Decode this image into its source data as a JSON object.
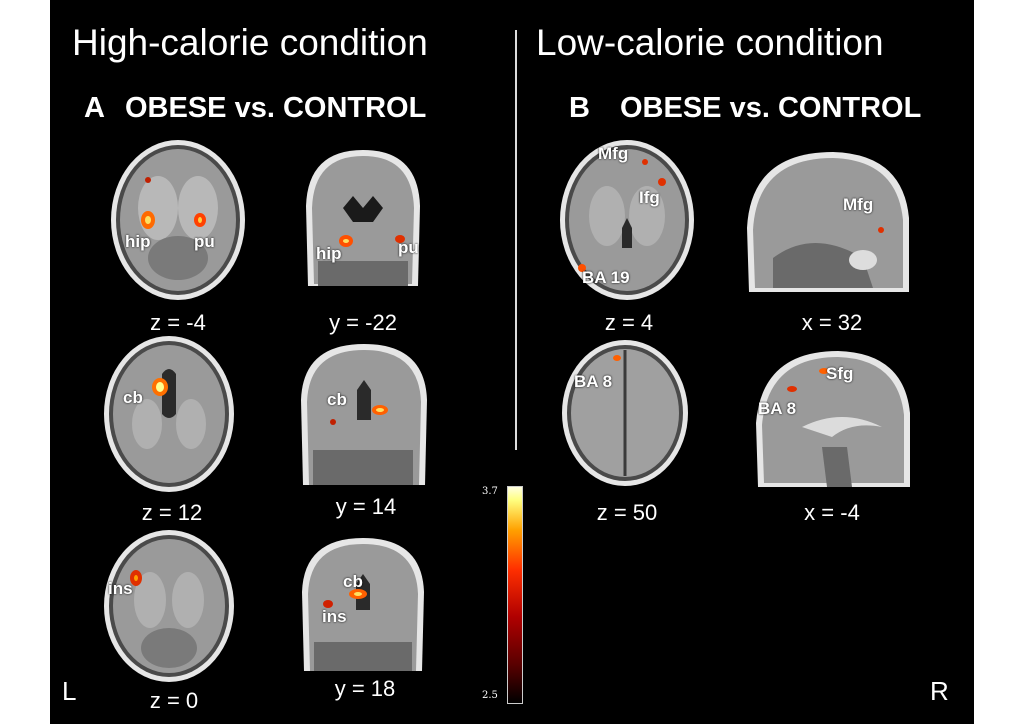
{
  "titles": {
    "high": "High-calorie condition",
    "low": "Low-calorie condition"
  },
  "panels": {
    "A": {
      "letter": "A",
      "heading": "OBESE vs. CONTROL"
    },
    "B": {
      "letter": "B",
      "heading": "OBESE vs. CONTROL"
    }
  },
  "slices": {
    "a1": {
      "coord": "z = -4",
      "labels": [
        "hip",
        "pu"
      ]
    },
    "a2": {
      "coord": "y = -22",
      "labels": [
        "hip",
        "pu"
      ]
    },
    "a3": {
      "coord": "z = 12",
      "labels": [
        "cb"
      ]
    },
    "a4": {
      "coord": "y = 14",
      "labels": [
        "cb"
      ]
    },
    "a5": {
      "coord": "z = 0",
      "labels": [
        "ins"
      ]
    },
    "a6": {
      "coord": "y = 18",
      "labels": [
        "cb",
        "ins"
      ]
    },
    "b1": {
      "coord": "z = 4",
      "labels": [
        "Mfg",
        "Ifg",
        "BA 19"
      ]
    },
    "b2": {
      "coord": "x = 32",
      "labels": [
        "Mfg"
      ]
    },
    "b3": {
      "coord": "z = 50",
      "labels": [
        "BA 8"
      ]
    },
    "b4": {
      "coord": "x = -4",
      "labels": [
        "Sfg",
        "BA 8"
      ]
    }
  },
  "colorbar": {
    "max": "3.7",
    "min": "2.5"
  },
  "orientation": {
    "left": "L",
    "right": "R"
  }
}
